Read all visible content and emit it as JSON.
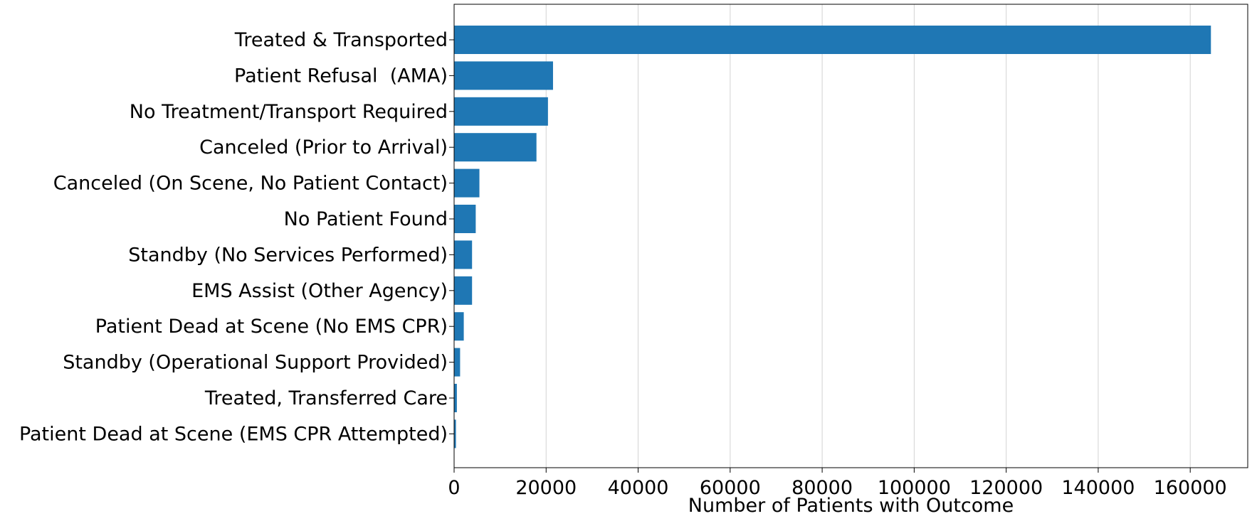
{
  "chart_data": {
    "type": "bar",
    "orientation": "horizontal",
    "categories": [
      "Treated & Transported",
      "Patient Refusal  (AMA)",
      "No Treatment/Transport Required",
      "Canceled (Prior to Arrival)",
      "Canceled (On Scene, No Patient Contact)",
      "No Patient Found",
      "Standby (No Services Performed)",
      "EMS Assist (Other Agency)",
      "Patient Dead at Scene (No EMS CPR)",
      "Standby (Operational Support Provided)",
      "Treated, Transferred Care",
      "Patient Dead at Scene (EMS CPR Attempted)"
    ],
    "values": [
      164500,
      21500,
      20400,
      17900,
      5500,
      4700,
      3900,
      3900,
      2100,
      1300,
      600,
      400
    ],
    "xlabel": "Number of Patients with Outcome",
    "ylabel": "",
    "xlim": [
      0,
      172500
    ],
    "xticks": [
      0,
      20000,
      40000,
      60000,
      80000,
      100000,
      120000,
      140000,
      160000
    ],
    "xtick_labels": [
      "0",
      "20000",
      "40000",
      "60000",
      "80000",
      "100000",
      "120000",
      "140000",
      "160000"
    ],
    "grid": "x-axis vertical lines",
    "bar_color": "#1f77b4",
    "grid_color": "#d3d3d3"
  }
}
